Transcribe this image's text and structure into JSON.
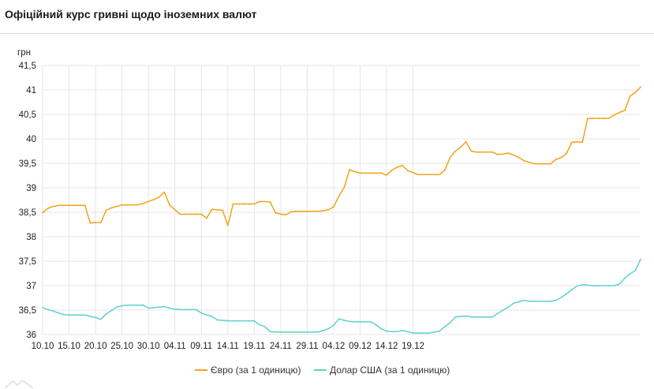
{
  "chart_data": {
    "type": "line",
    "title": "Офіційний курс гривні щодо іноземних валют",
    "ylabel": "грн",
    "ylim": [
      36,
      41.5
    ],
    "yticks": [
      "36",
      "36,5",
      "37",
      "37,5",
      "38",
      "38,5",
      "39",
      "39,5",
      "40",
      "40,5",
      "41",
      "41,5"
    ],
    "ytick_values": [
      36,
      36.5,
      37,
      37.5,
      38,
      38.5,
      39,
      39.5,
      40,
      40.5,
      41,
      41.5
    ],
    "xtick_labels": [
      "10.10",
      "15.10",
      "20.10",
      "25.10",
      "30.10",
      "04.11",
      "09.11",
      "14.11",
      "19.11",
      "24.11",
      "29.11",
      "04.12",
      "09.12",
      "14.12",
      "19.12"
    ],
    "grid": true,
    "legend_position": "bottom",
    "colors": {
      "eur": "#f2a31b",
      "usd": "#5fd1cc"
    },
    "series": [
      {
        "name": "Євро (за 1 одиницю)",
        "color": "#f2a31b",
        "values": [
          38.49,
          38.58,
          38.62,
          38.64,
          38.64,
          38.64,
          38.64,
          38.64,
          38.64,
          38.28,
          38.29,
          38.29,
          38.54,
          38.59,
          38.62,
          38.65,
          38.65,
          38.65,
          38.65,
          38.68,
          38.72,
          38.76,
          38.81,
          38.91,
          38.65,
          38.55,
          38.46,
          38.46,
          38.46,
          38.46,
          38.46,
          38.38,
          38.56,
          38.55,
          38.54,
          38.23,
          38.67,
          38.67,
          38.67,
          38.67,
          38.67,
          38.72,
          38.72,
          38.71,
          38.49,
          38.46,
          38.45,
          38.51,
          38.52,
          38.52,
          38.52,
          38.52,
          38.52,
          38.53,
          38.55,
          38.61,
          38.83,
          39.01,
          39.37,
          39.33,
          39.3,
          39.3,
          39.3,
          39.3,
          39.3,
          39.26,
          39.36,
          39.42,
          39.46,
          39.35,
          39.31,
          39.27,
          39.27,
          39.27,
          39.27,
          39.27,
          39.36,
          39.62,
          39.75,
          39.83,
          39.94,
          39.75,
          39.73,
          39.73,
          39.73,
          39.73,
          39.68,
          39.69,
          39.71,
          39.67,
          39.62,
          39.55,
          39.52,
          39.49,
          39.49,
          39.49,
          39.49,
          39.58,
          39.62,
          39.7,
          39.93,
          39.94,
          39.93,
          40.42,
          40.42,
          40.42,
          40.42,
          40.42,
          40.49,
          40.54,
          40.58,
          40.87,
          40.95,
          41.06
        ]
      },
      {
        "name": "Долар США (за 1 одиницю)",
        "color": "#5fd1cc",
        "values": [
          36.55,
          36.51,
          36.48,
          36.44,
          36.41,
          36.4,
          36.4,
          36.4,
          36.4,
          36.37,
          36.35,
          36.31,
          36.42,
          36.49,
          36.56,
          36.59,
          36.6,
          36.6,
          36.6,
          36.6,
          36.54,
          36.55,
          36.56,
          36.57,
          36.54,
          36.52,
          36.51,
          36.51,
          36.51,
          36.51,
          36.44,
          36.4,
          36.37,
          36.3,
          36.29,
          36.28,
          36.28,
          36.28,
          36.28,
          36.28,
          36.28,
          36.2,
          36.16,
          36.06,
          36.05,
          36.05,
          36.05,
          36.05,
          36.05,
          36.05,
          36.05,
          36.05,
          36.05,
          36.08,
          36.12,
          36.19,
          36.32,
          36.29,
          36.27,
          36.26,
          36.26,
          36.26,
          36.26,
          36.2,
          36.12,
          36.07,
          36.06,
          36.06,
          36.08,
          36.06,
          36.03,
          36.03,
          36.03,
          36.03,
          36.05,
          36.07,
          36.16,
          36.24,
          36.36,
          36.37,
          36.38,
          36.36,
          36.36,
          36.36,
          36.36,
          36.36,
          36.43,
          36.5,
          36.56,
          36.64,
          36.67,
          36.7,
          36.68,
          36.68,
          36.68,
          36.68,
          36.68,
          36.7,
          36.76,
          36.83,
          36.92,
          36.99,
          37.02,
          37.01,
          37.0,
          37.0,
          37.0,
          37.0,
          37.0,
          37.03,
          37.15,
          37.24,
          37.31,
          37.54
        ]
      }
    ]
  }
}
